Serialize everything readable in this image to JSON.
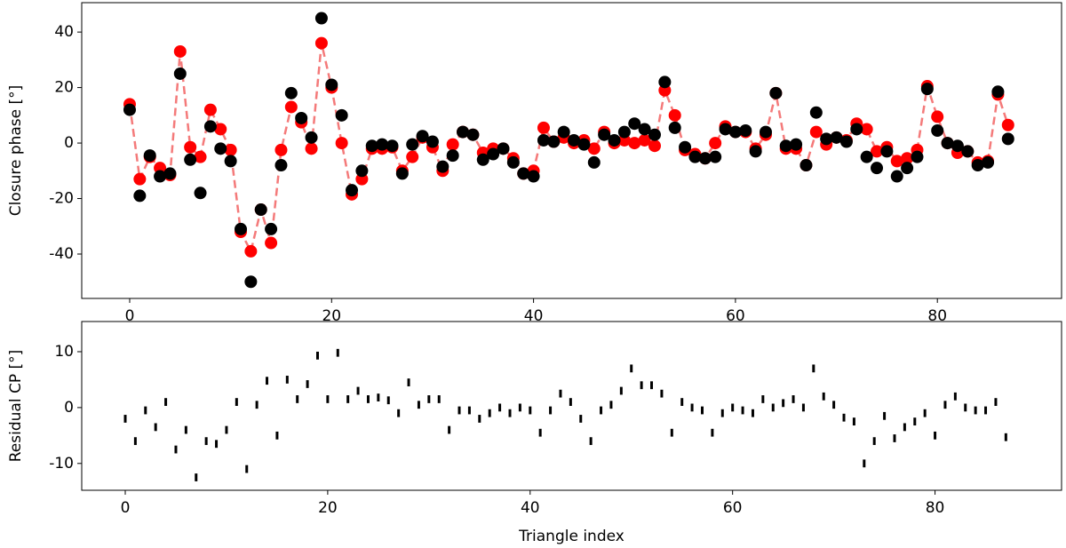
{
  "chart_data": [
    {
      "type": "scatter",
      "ylabel": "Closure phase [°]",
      "x": [
        0,
        1,
        2,
        3,
        4,
        5,
        6,
        7,
        8,
        9,
        10,
        11,
        12,
        13,
        14,
        15,
        16,
        17,
        18,
        19,
        20,
        21,
        22,
        23,
        24,
        25,
        26,
        27,
        28,
        29,
        30,
        31,
        32,
        33,
        34,
        35,
        36,
        37,
        38,
        39,
        40,
        41,
        42,
        43,
        44,
        45,
        46,
        47,
        48,
        49,
        50,
        51,
        52,
        53,
        54,
        55,
        56,
        57,
        58,
        59,
        60,
        61,
        62,
        63,
        64,
        65,
        66,
        67,
        68,
        69,
        70,
        71,
        72,
        73,
        74,
        75,
        76,
        77,
        78,
        79,
        80,
        81,
        82,
        83,
        84,
        85,
        86,
        87
      ],
      "series": [
        {
          "color": "#ff0000",
          "line_color": "#f47a7a",
          "line_style": "dashed",
          "values": [
            14,
            -13,
            -5,
            -9,
            -11.5,
            33,
            -1.5,
            -5,
            12,
            5,
            -2.5,
            -32,
            -39,
            -24,
            -36,
            -2.5,
            13,
            7.5,
            -2,
            36,
            20,
            0,
            -18.5,
            -13,
            -2,
            -2,
            -1.5,
            -10,
            -5,
            2,
            -1.5,
            -10,
            -0.5,
            4,
            3,
            -3.5,
            -2,
            -2,
            -5.5,
            -11,
            -10,
            5.5,
            0.5,
            2,
            0,
            1,
            -2,
            4,
            0,
            1,
            0,
            1,
            -1,
            19,
            10,
            -2.5,
            -4,
            -5.5,
            0,
            6,
            4,
            4,
            -2,
            3,
            18,
            -2,
            -2,
            -8,
            4,
            -0.5,
            2,
            1,
            7,
            5,
            -3,
            -1.5,
            -6.5,
            -5.5,
            -2.5,
            20.5,
            9.5,
            0,
            -3.5,
            -3,
            -7,
            -6.5,
            17.5,
            6.5
          ]
        },
        {
          "color": "#000000",
          "values": [
            12,
            -19,
            -4.5,
            -12,
            -11,
            25,
            -6,
            -18,
            6,
            -2,
            -6.5,
            -31,
            -50,
            -24,
            -31,
            -8,
            18,
            9,
            2,
            45,
            21,
            10,
            -17,
            -10,
            -1,
            -0.5,
            -1,
            -11,
            -0.5,
            2.5,
            0.5,
            -8.5,
            -4.5,
            4,
            3,
            -6,
            -4,
            -2,
            -7,
            -11,
            -12,
            1,
            0.5,
            4,
            1,
            -0.5,
            -7,
            3,
            1,
            4,
            7,
            5,
            3,
            22,
            5.5,
            -1.5,
            -5,
            -5.5,
            -5,
            5,
            4,
            4.5,
            -3,
            4,
            18,
            -1,
            -0.5,
            -8,
            11,
            1.5,
            2,
            0.5,
            5,
            -5,
            -9,
            -3,
            -12,
            -9,
            -5,
            19.5,
            4.5,
            0,
            -1,
            -3,
            -8,
            -7,
            18.5,
            1.5
          ]
        }
      ],
      "xlim": [
        -4.75,
        92.3
      ],
      "xticks": [
        0,
        20,
        40,
        60,
        80
      ],
      "ylim": [
        -56,
        50.6
      ],
      "yticks": [
        -40,
        -20,
        0,
        20,
        40
      ]
    },
    {
      "type": "errorbar",
      "xlabel": "Triangle index",
      "ylabel": "Residual CP [°]",
      "color": "#000000",
      "x": [
        0,
        1,
        2,
        3,
        4,
        5,
        6,
        7,
        8,
        9,
        10,
        11,
        12,
        13,
        14,
        15,
        16,
        17,
        18,
        19,
        20,
        21,
        22,
        23,
        24,
        25,
        26,
        27,
        28,
        29,
        30,
        31,
        32,
        33,
        34,
        35,
        36,
        37,
        38,
        39,
        40,
        41,
        42,
        43,
        44,
        45,
        46,
        47,
        48,
        49,
        50,
        51,
        52,
        53,
        54,
        55,
        56,
        57,
        58,
        59,
        60,
        61,
        62,
        63,
        64,
        65,
        66,
        67,
        68,
        69,
        70,
        71,
        72,
        73,
        74,
        75,
        76,
        77,
        78,
        79,
        80,
        81,
        82,
        83,
        84,
        85,
        86,
        87
      ],
      "values": [
        -2,
        -6,
        -0.5,
        -3.5,
        1,
        -7.5,
        -4,
        -12.5,
        -6,
        -6.5,
        -4,
        1,
        -11,
        0.5,
        4.8,
        -5,
        5,
        1.5,
        4.2,
        9.3,
        1.5,
        9.8,
        1.5,
        3,
        1.5,
        1.8,
        1.3,
        -1,
        4.5,
        0.5,
        1.5,
        1.5,
        -4,
        -0.5,
        -0.5,
        -2,
        -1,
        0,
        -1,
        0,
        -0.5,
        -4.5,
        -0.5,
        2.5,
        1,
        -2,
        -6,
        -0.5,
        0.5,
        3,
        7,
        4,
        4,
        2.5,
        -4.5,
        1,
        0,
        -0.5,
        -4.5,
        -1,
        0,
        -0.5,
        -1,
        1.5,
        0,
        0.8,
        1.5,
        0,
        7,
        2,
        0.5,
        -1.8,
        -2.5,
        -10,
        -6,
        -1.5,
        -5.5,
        -3.5,
        -2.5,
        -1,
        -5,
        0.5,
        2,
        0,
        -0.5,
        -0.5,
        1,
        -5.3
      ],
      "yerr": 0.7,
      "xlim": [
        -4.3,
        92.5
      ],
      "xticks": [
        0,
        20,
        40,
        60,
        80
      ],
      "ylim": [
        -14.8,
        15.4
      ],
      "yticks": [
        -10,
        0,
        10
      ]
    }
  ]
}
